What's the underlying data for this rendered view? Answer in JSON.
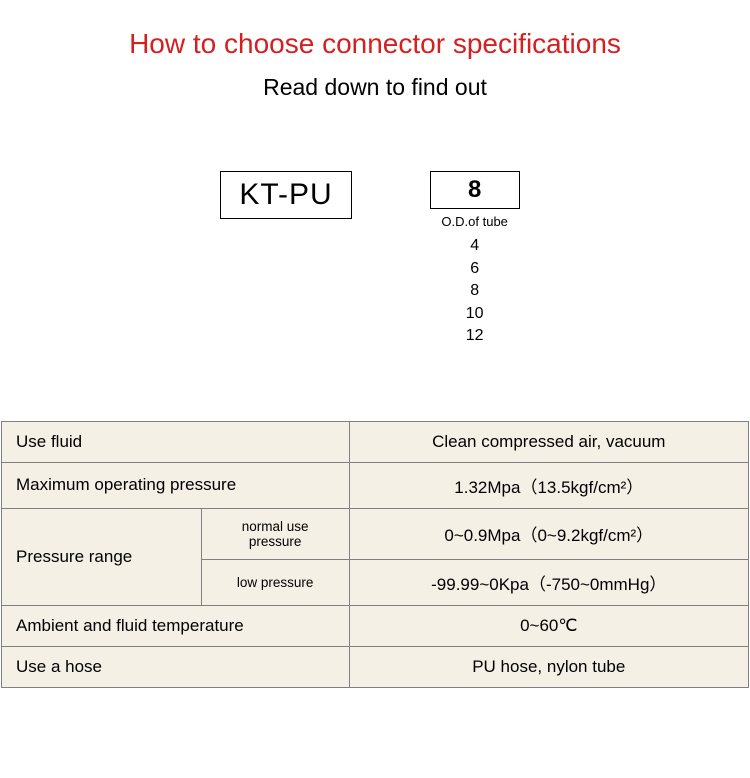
{
  "header": {
    "title": "How to choose connector specifications",
    "subtitle": "Read down to find out"
  },
  "code": {
    "prefix": "KT-PU",
    "selected_size": "8",
    "size_label": "O.D.of tube",
    "sizes": [
      "4",
      "6",
      "8",
      "10",
      "12"
    ]
  },
  "spec": {
    "rows": {
      "fluid": {
        "label": "Use fluid",
        "value": "Clean compressed air, vacuum"
      },
      "max_pressure": {
        "label": "Maximum operating pressure",
        "value": "1.32Mpa（13.5kgf/cm²）"
      },
      "pressure_range": {
        "label": "Pressure range",
        "normal": {
          "label": "normal use pressure",
          "value": "0~0.9Mpa（0~9.2kgf/cm²）"
        },
        "low": {
          "label": "low pressure",
          "value": "-99.99~0Kpa（-750~0mmHg）"
        }
      },
      "temperature": {
        "label": "Ambient and fluid temperature",
        "value": "0~60℃"
      },
      "hose": {
        "label": "Use a hose",
        "value": "PU hose, nylon tube"
      }
    }
  },
  "colors": {
    "title_color": "#d32020",
    "text_color": "#000000",
    "cell_bg": "#f5f0e6",
    "border_color": "#808080",
    "page_bg": "#ffffff"
  }
}
